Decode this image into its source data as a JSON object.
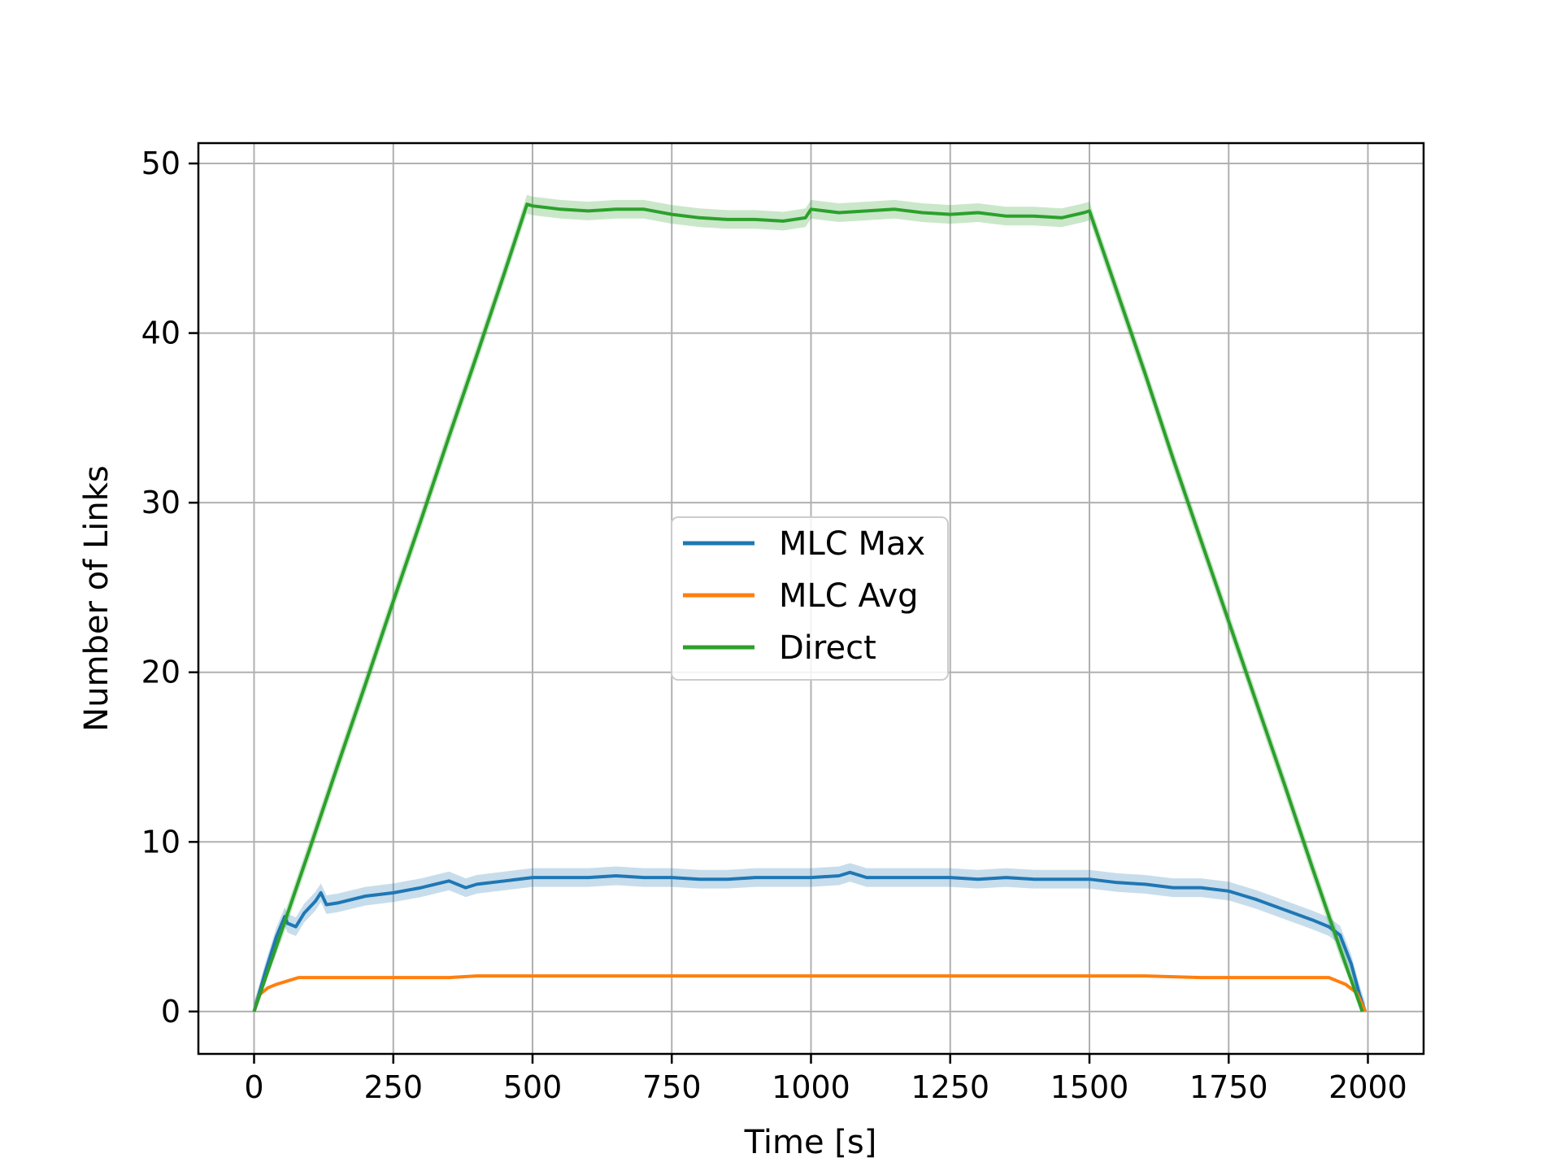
{
  "chart_data": {
    "type": "line",
    "xlabel": "Time [s]",
    "ylabel": "Number of Links",
    "xlim": [
      -100,
      2100
    ],
    "ylim": [
      -2.5,
      51.2
    ],
    "xticks": [
      0,
      250,
      500,
      750,
      1000,
      1250,
      1500,
      1750,
      2000
    ],
    "xtick_labels": [
      "0",
      "250",
      "500",
      "750",
      "1000",
      "1250",
      "1500",
      "1750",
      "2000"
    ],
    "yticks": [
      0,
      10,
      20,
      30,
      40,
      50
    ],
    "ytick_labels": [
      "0",
      "10",
      "20",
      "30",
      "40",
      "50"
    ],
    "grid": true,
    "legend_position": "center",
    "series": [
      {
        "name": "MLC Max",
        "color": "#1f77b4",
        "band": true,
        "x": [
          0,
          20,
          40,
          55,
          60,
          75,
          90,
          110,
          120,
          130,
          150,
          200,
          250,
          300,
          350,
          380,
          400,
          450,
          500,
          550,
          600,
          650,
          700,
          750,
          800,
          850,
          900,
          950,
          1000,
          1050,
          1070,
          1100,
          1150,
          1200,
          1250,
          1300,
          1350,
          1400,
          1450,
          1500,
          1550,
          1600,
          1650,
          1700,
          1750,
          1800,
          1850,
          1900,
          1930,
          1950,
          1970,
          1985,
          1995
        ],
        "y": [
          0,
          2.3,
          4.4,
          5.6,
          5.2,
          5.0,
          5.8,
          6.5,
          7.0,
          6.3,
          6.4,
          6.8,
          7.0,
          7.3,
          7.7,
          7.3,
          7.5,
          7.7,
          7.9,
          7.9,
          7.9,
          8.0,
          7.9,
          7.9,
          7.8,
          7.8,
          7.9,
          7.9,
          7.9,
          8.0,
          8.2,
          7.9,
          7.9,
          7.9,
          7.9,
          7.8,
          7.9,
          7.8,
          7.8,
          7.8,
          7.6,
          7.5,
          7.3,
          7.3,
          7.1,
          6.6,
          6.0,
          5.4,
          5.0,
          4.5,
          2.8,
          1.0,
          0
        ]
      },
      {
        "name": "MLC Avg",
        "color": "#ff7f0e",
        "band": false,
        "x": [
          0,
          10,
          25,
          40,
          60,
          80,
          100,
          200,
          350,
          400,
          500,
          1000,
          1500,
          1600,
          1700,
          1750,
          1900,
          1930,
          1960,
          1980,
          1990,
          1995
        ],
        "y": [
          0,
          1.0,
          1.4,
          1.6,
          1.8,
          2.0,
          2.0,
          2.0,
          2.0,
          2.1,
          2.1,
          2.1,
          2.1,
          2.1,
          2.0,
          2.0,
          2.0,
          2.0,
          1.6,
          1.1,
          0.4,
          0
        ]
      },
      {
        "name": "Direct",
        "color": "#2ca02c",
        "band": true,
        "x": [
          0,
          50,
          100,
          150,
          200,
          250,
          300,
          350,
          400,
          450,
          490,
          500,
          550,
          600,
          650,
          700,
          750,
          800,
          850,
          900,
          950,
          990,
          1000,
          1050,
          1100,
          1150,
          1200,
          1250,
          1300,
          1350,
          1400,
          1450,
          1490,
          1500,
          1550,
          1600,
          1650,
          1700,
          1750,
          1800,
          1850,
          1900,
          1950,
          1990
        ],
        "y": [
          0,
          4.8,
          9.6,
          14.5,
          19.3,
          24.2,
          29.0,
          33.9,
          38.7,
          43.6,
          47.6,
          47.5,
          47.3,
          47.2,
          47.3,
          47.3,
          47.0,
          46.8,
          46.7,
          46.7,
          46.6,
          46.8,
          47.3,
          47.1,
          47.2,
          47.3,
          47.1,
          47.0,
          47.1,
          46.9,
          46.9,
          46.8,
          47.1,
          47.2,
          42.4,
          37.6,
          32.6,
          27.8,
          23.0,
          18.2,
          13.4,
          8.5,
          3.7,
          0
        ]
      }
    ]
  }
}
